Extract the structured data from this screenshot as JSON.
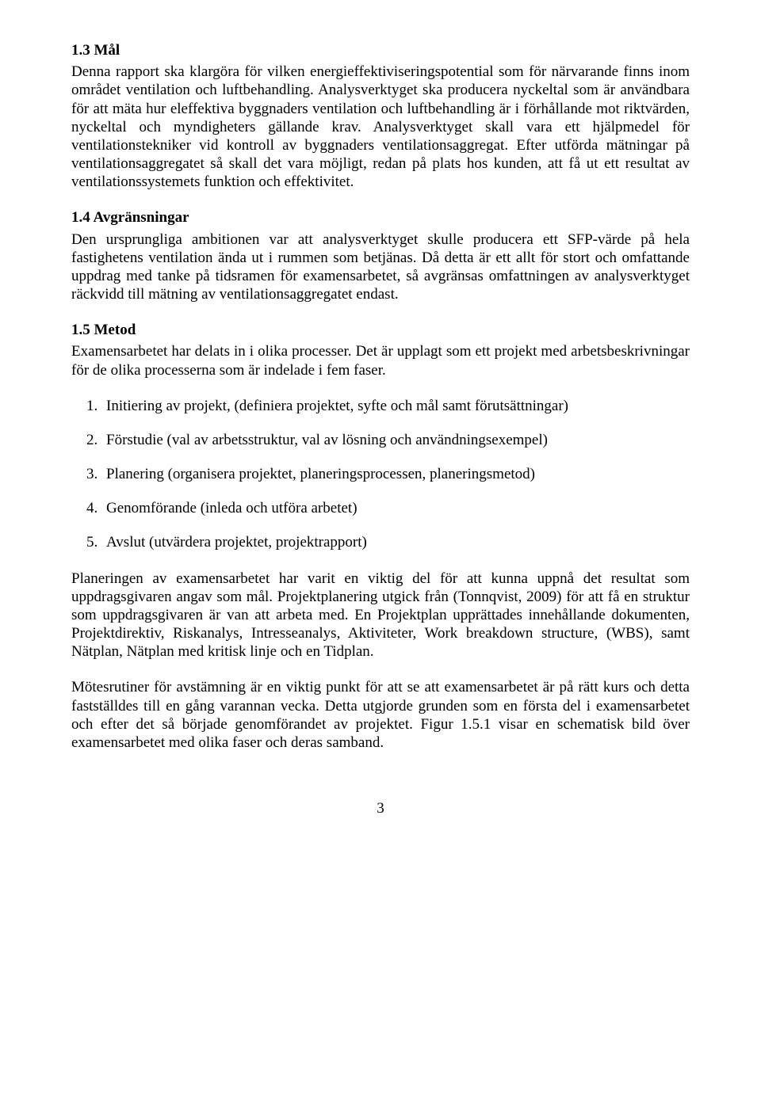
{
  "section13": {
    "heading": "1.3 Mål",
    "para": "Denna rapport ska klargöra för vilken energieffektiviseringspotential som för närvarande finns inom området ventilation och luftbehandling. Analysverktyget ska producera nyckeltal som är användbara för att mäta hur eleffektiva byggnaders ventilation och luftbehandling är i förhållande mot riktvärden, nyckeltal och myndigheters gällande krav. Analysverktyget skall vara ett hjälpmedel för ventilationstekniker vid kontroll av byggnaders ventilationsaggregat. Efter utförda mätningar på ventilationsaggregatet så skall det vara möjligt, redan på plats hos kunden, att få ut ett resultat av ventilationssystemets funktion och effektivitet."
  },
  "section14": {
    "heading": "1.4 Avgränsningar",
    "para": "Den ursprungliga ambitionen var att analysverktyget skulle producera ett SFP-värde på hela fastighetens ventilation ända ut i rummen som betjänas. Då detta är ett allt för stort och omfattande uppdrag med tanke på tidsramen för examensarbetet, så avgränsas omfattningen av analysverktyget räckvidd till mätning av ventilationsaggregatet endast."
  },
  "section15": {
    "heading": "1.5 Metod",
    "intro": "Examensarbetet har delats in i olika processer. Det är upplagt som ett projekt med arbetsbeskrivningar för de olika processerna som är indelade i fem faser.",
    "list": [
      "Initiering av projekt, (definiera projektet, syfte och mål samt förutsättningar)",
      "Förstudie (val av arbetsstruktur, val av lösning och användningsexempel)",
      "Planering (organisera projektet, planeringsprocessen, planeringsmetod)",
      "Genomförande (inleda och utföra arbetet)",
      "Avslut (utvärdera projektet, projektrapport)"
    ],
    "para2": "Planeringen av examensarbetet har varit en viktig del för att kunna uppnå det resultat som uppdragsgivaren angav som mål. Projektplanering utgick från (Tonnqvist, 2009) för att få en struktur som uppdragsgivaren är van att arbeta med. En Projektplan upprättades innehållande dokumenten, Projektdirektiv, Riskanalys, Intresseanalys, Aktiviteter, Work breakdown structure, (WBS), samt Nätplan, Nätplan med kritisk linje och en Tidplan.",
    "para3": "Mötesrutiner för avstämning är en viktig punkt för att se att examensarbetet är på rätt kurs och detta fastställdes till en gång varannan vecka. Detta utgjorde grunden som en första del i examensarbetet och efter det så började genomförandet av projektet. Figur 1.5.1 visar en schematisk bild över examensarbetet med olika faser och deras samband."
  },
  "pageNumber": "3"
}
